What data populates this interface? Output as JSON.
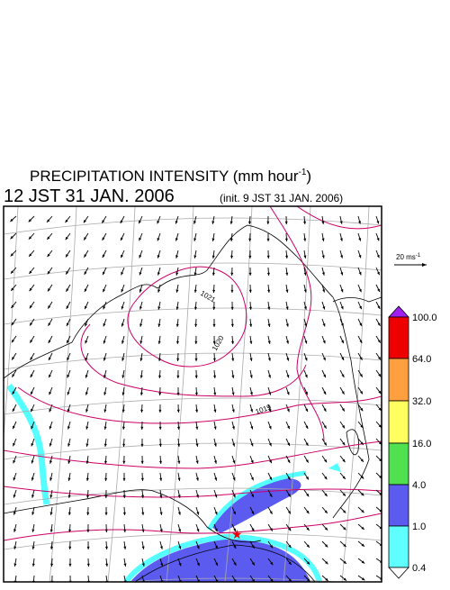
{
  "header": {
    "title": "PRECIPITATION INTENSITY (mm hour",
    "title_sup": "-1",
    "title_end": ")",
    "time": "12 JST 31 JAN. 2006",
    "init": "(init. 9 JST 31 JAN. 2006)"
  },
  "wind_scale": {
    "label": "20 ms",
    "sup": "-1"
  },
  "colorbar": {
    "labels": [
      "100.0",
      "64.0",
      "32.0",
      "16.0",
      "4.0",
      "1.0",
      "0.4"
    ]
  },
  "contours": {
    "labels": [
      "1021",
      "1020",
      "1019"
    ]
  }
}
